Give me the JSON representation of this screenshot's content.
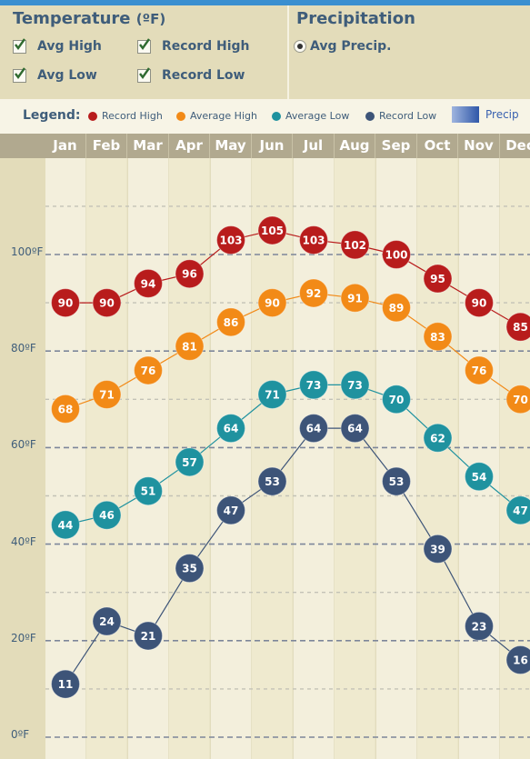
{
  "controls": {
    "temperature": {
      "title": "Temperature",
      "unit": "(ºF)",
      "options": [
        "Avg High",
        "Record High",
        "Avg Low",
        "Record Low"
      ]
    },
    "precipitation": {
      "title": "Precipitation",
      "option": "Avg Precip."
    }
  },
  "legend": {
    "title": "Legend:",
    "precip_label": "Precip"
  },
  "chart_data": {
    "type": "line",
    "categories": [
      "Jan",
      "Feb",
      "Mar",
      "Apr",
      "May",
      "Jun",
      "Jul",
      "Aug",
      "Sep",
      "Oct",
      "Nov",
      "Dec"
    ],
    "y_ticks": [
      {
        "value": 100,
        "label": "100ºF"
      },
      {
        "value": 80,
        "label": "80ºF"
      },
      {
        "value": 60,
        "label": "60ºF"
      },
      {
        "value": 40,
        "label": "40ºF"
      },
      {
        "value": 20,
        "label": "20ºF"
      },
      {
        "value": 0,
        "label": "0ºF"
      }
    ],
    "ylim": [
      0,
      110
    ],
    "grid": true,
    "legend_position": "top",
    "series": [
      {
        "name": "Record High",
        "color": "#b81c1c",
        "values": [
          90,
          90,
          94,
          96,
          103,
          105,
          103,
          102,
          100,
          95,
          90,
          85
        ]
      },
      {
        "name": "Average High",
        "color": "#f28a17",
        "values": [
          68,
          71,
          76,
          81,
          86,
          90,
          92,
          91,
          89,
          83,
          76,
          70
        ]
      },
      {
        "name": "Average Low",
        "color": "#1f929f",
        "values": [
          44,
          46,
          51,
          57,
          64,
          71,
          73,
          73,
          70,
          62,
          54,
          47
        ]
      },
      {
        "name": "Record Low",
        "color": "#3d5478",
        "values": [
          11,
          24,
          21,
          35,
          47,
          53,
          64,
          64,
          53,
          39,
          23,
          16
        ]
      }
    ]
  }
}
